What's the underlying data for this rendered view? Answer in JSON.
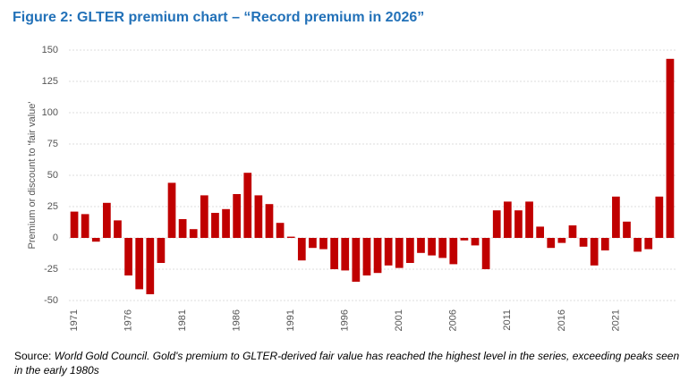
{
  "chart_data": {
    "type": "bar",
    "title": "Figure 2: GLTER premium chart – “Record premium in 2026”",
    "y_label": "Premium or discount to 'fair value'",
    "source_label": "Source:",
    "source_text": "World Gold Council. Gold's premium to GLTER-derived fair value has reached the highest level in the series, exceeding peaks seen in the early 1980s",
    "categories": [
      "1971",
      null,
      null,
      null,
      null,
      "1976",
      null,
      null,
      null,
      null,
      "1981",
      null,
      null,
      null,
      null,
      "1986",
      null,
      null,
      null,
      null,
      "1991",
      null,
      null,
      null,
      null,
      "1996",
      null,
      null,
      null,
      null,
      "2001",
      null,
      null,
      null,
      null,
      "2006",
      null,
      null,
      null,
      null,
      "2011",
      null,
      null,
      null,
      null,
      "2016",
      null,
      null,
      null,
      null,
      "2021",
      null,
      null,
      null,
      null,
      null
    ],
    "values": [
      21,
      19,
      -3,
      28,
      14,
      -30,
      -41,
      -45,
      -20,
      44,
      15,
      7,
      34,
      20,
      23,
      35,
      52,
      34,
      27,
      12,
      1,
      -18,
      -8,
      -9,
      -25,
      -26,
      -35,
      -30,
      -28,
      -22,
      -24,
      -20,
      -12,
      -14,
      -16,
      -21,
      -2,
      -6,
      -25,
      22,
      29,
      22,
      29,
      9,
      -8,
      -4,
      10,
      -7,
      -22,
      -10,
      33,
      13,
      -11,
      -9,
      33,
      143
    ],
    "color": "#c00000",
    "ylim": [
      -50,
      150
    ],
    "yticks": [
      -50,
      -25,
      0,
      25,
      50,
      75,
      100,
      125,
      150
    ],
    "grid": true
  }
}
